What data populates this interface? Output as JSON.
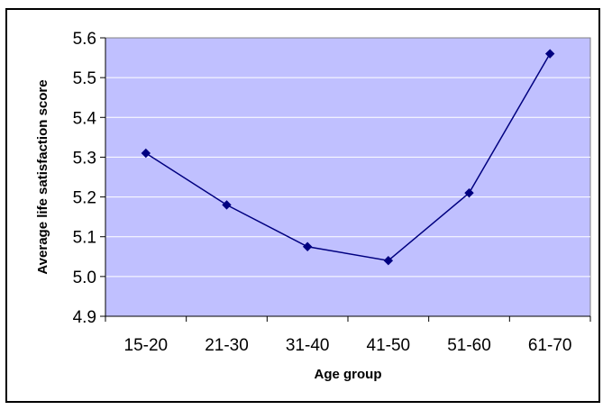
{
  "chart_data": {
    "type": "line",
    "title": "",
    "xlabel": "Age group",
    "ylabel": "Average life satisfaction score",
    "categories": [
      "15-20",
      "21-30",
      "31-40",
      "41-50",
      "51-60",
      "61-70"
    ],
    "series": [
      {
        "values": [
          5.31,
          5.18,
          5.075,
          5.04,
          5.21,
          5.56
        ],
        "marker": "diamond",
        "color": "#000080"
      }
    ],
    "ylim": [
      4.9,
      5.6
    ],
    "yticks": [
      "4.9",
      "5.0",
      "5.1",
      "5.2",
      "5.3",
      "5.4",
      "5.5",
      "5.6"
    ],
    "grid": "horizontal",
    "legend": "none",
    "plot_background": "#c0c0ff",
    "gridline_color": "#ffffff"
  }
}
